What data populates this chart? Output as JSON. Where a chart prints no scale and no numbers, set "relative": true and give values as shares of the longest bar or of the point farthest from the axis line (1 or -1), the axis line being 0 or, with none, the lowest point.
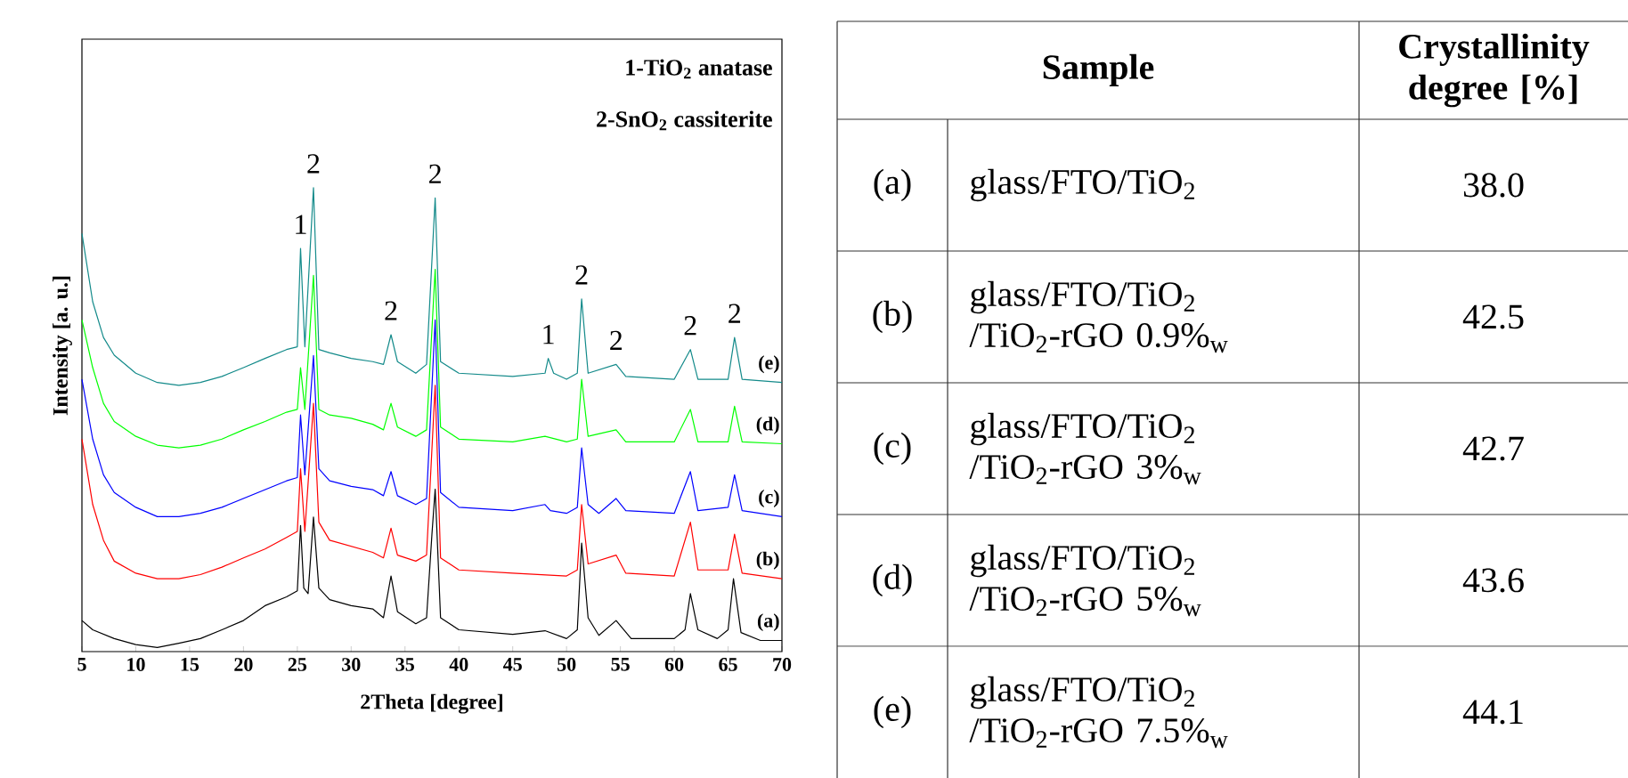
{
  "chart_data": [
    {
      "type": "line",
      "relative": true,
      "xlabel": "2Theta [degree]",
      "ylabel": "Intensity [a. u.]",
      "xlim": [
        5,
        70
      ],
      "xticks": [
        5,
        10,
        15,
        20,
        25,
        30,
        35,
        40,
        45,
        50,
        55,
        60,
        65,
        70
      ],
      "marker": "none",
      "line_style": "solid",
      "annotations": [
        "1-TiO$_{2}$ anatase",
        "2-SnO$_{2}$ cassiterite",
        {
          "text": "1",
          "x": 25.3,
          "y": 0.869
        },
        {
          "text": "2",
          "x": 26.5,
          "y": 1.0
        },
        {
          "text": "2",
          "x": 33.7,
          "y": 0.683
        },
        {
          "text": "2",
          "x": 37.8,
          "y": 0.978
        },
        {
          "text": "1",
          "x": 48.3,
          "y": 0.632
        },
        {
          "text": "2",
          "x": 51.4,
          "y": 0.76
        },
        {
          "text": "2",
          "x": 54.6,
          "y": 0.619
        },
        {
          "text": "2",
          "x": 61.5,
          "y": 0.651
        },
        {
          "text": "2",
          "x": 65.6,
          "y": 0.677
        }
      ],
      "series": [
        {
          "name": "(a)",
          "color": "#000000",
          "x": [
            5,
            6,
            8,
            10,
            12,
            14,
            16,
            18,
            20,
            22,
            24,
            25,
            25.3,
            25.6,
            26,
            26.5,
            27,
            28,
            30,
            32,
            33,
            33.7,
            34.3,
            36,
            37,
            37.5,
            37.8,
            38.3,
            40,
            45,
            48,
            50,
            51,
            51.4,
            52,
            53,
            54.6,
            56,
            60,
            61,
            61.5,
            62.2,
            64,
            65,
            65.5,
            66.2,
            68,
            70
          ],
          "values": [
            0.067,
            0.047,
            0.028,
            0.015,
            0.009,
            0.018,
            0.028,
            0.047,
            0.067,
            0.099,
            0.118,
            0.131,
            0.272,
            0.137,
            0.125,
            0.29,
            0.137,
            0.112,
            0.099,
            0.092,
            0.073,
            0.163,
            0.086,
            0.06,
            0.073,
            0.253,
            0.35,
            0.073,
            0.047,
            0.037,
            0.045,
            0.028,
            0.047,
            0.234,
            0.073,
            0.035,
            0.067,
            0.028,
            0.028,
            0.047,
            0.125,
            0.047,
            0.028,
            0.047,
            0.157,
            0.041,
            0.024,
            0.024
          ]
        },
        {
          "name": "(b)",
          "color": "#ff0000",
          "x": [
            5,
            6,
            7,
            8,
            10,
            12,
            14,
            16,
            18,
            20,
            22,
            24,
            25,
            25.3,
            25.7,
            26.5,
            27,
            28,
            30,
            32,
            33,
            33.7,
            34.3,
            36,
            37,
            37.8,
            38.3,
            40,
            45,
            50,
            51,
            51.4,
            52,
            54.6,
            55.5,
            60,
            61.5,
            62.2,
            65,
            65.6,
            66.3,
            70
          ],
          "values": [
            0.458,
            0.317,
            0.24,
            0.195,
            0.169,
            0.157,
            0.157,
            0.166,
            0.182,
            0.202,
            0.221,
            0.246,
            0.259,
            0.394,
            0.259,
            0.535,
            0.279,
            0.24,
            0.227,
            0.214,
            0.202,
            0.266,
            0.208,
            0.195,
            0.208,
            0.574,
            0.202,
            0.176,
            0.169,
            0.163,
            0.176,
            0.317,
            0.189,
            0.208,
            0.169,
            0.163,
            0.279,
            0.176,
            0.176,
            0.253,
            0.169,
            0.157
          ]
        },
        {
          "name": "(c)",
          "color": "#0000ff",
          "x": [
            5,
            6,
            7,
            8,
            10,
            12,
            14,
            16,
            18,
            20,
            22,
            24,
            25,
            25.3,
            25.7,
            26.5,
            27,
            28,
            30,
            32,
            33,
            33.7,
            34.3,
            36,
            37,
            37.8,
            38.3,
            40,
            45,
            48,
            48.5,
            50,
            51,
            51.4,
            52,
            53,
            54.6,
            55.5,
            60,
            61.5,
            62.2,
            65,
            65.6,
            66.3,
            70
          ],
          "values": [
            0.587,
            0.458,
            0.381,
            0.343,
            0.311,
            0.291,
            0.291,
            0.298,
            0.311,
            0.33,
            0.349,
            0.368,
            0.375,
            0.51,
            0.381,
            0.638,
            0.394,
            0.368,
            0.356,
            0.349,
            0.336,
            0.388,
            0.336,
            0.317,
            0.33,
            0.715,
            0.343,
            0.311,
            0.304,
            0.317,
            0.304,
            0.298,
            0.311,
            0.439,
            0.317,
            0.298,
            0.33,
            0.304,
            0.298,
            0.388,
            0.304,
            0.311,
            0.381,
            0.304,
            0.291
          ]
        },
        {
          "name": "(d)",
          "color": "#00ff00",
          "x": [
            5,
            6,
            7,
            8,
            10,
            12,
            14,
            16,
            18,
            20,
            22,
            24,
            25,
            25.3,
            25.7,
            26.5,
            27,
            28,
            30,
            32,
            33,
            33.7,
            34.3,
            36,
            37,
            37.8,
            38.3,
            40,
            45,
            48,
            50,
            51,
            51.4,
            52,
            54.6,
            55.5,
            60,
            61.5,
            62.2,
            65,
            65.6,
            66.3,
            70
          ],
          "values": [
            0.715,
            0.612,
            0.535,
            0.496,
            0.464,
            0.445,
            0.439,
            0.445,
            0.458,
            0.478,
            0.496,
            0.516,
            0.522,
            0.612,
            0.522,
            0.811,
            0.522,
            0.51,
            0.503,
            0.49,
            0.478,
            0.535,
            0.484,
            0.464,
            0.478,
            0.824,
            0.484,
            0.458,
            0.452,
            0.464,
            0.452,
            0.458,
            0.587,
            0.464,
            0.478,
            0.452,
            0.452,
            0.522,
            0.452,
            0.452,
            0.529,
            0.452,
            0.448
          ]
        },
        {
          "name": "(e)",
          "color": "#138a8a",
          "x": [
            5,
            6,
            7,
            8,
            10,
            12,
            14,
            16,
            18,
            20,
            22,
            24,
            25,
            25.3,
            25.7,
            26.5,
            27,
            28,
            30,
            32,
            33,
            33.7,
            34.3,
            36,
            37,
            37.8,
            38.3,
            40,
            45,
            48,
            48.3,
            48.8,
            50,
            51,
            51.4,
            52,
            54.6,
            55.5,
            60,
            61.5,
            62.2,
            65,
            65.6,
            66.3,
            70
          ],
          "values": [
            0.901,
            0.754,
            0.677,
            0.639,
            0.6,
            0.58,
            0.574,
            0.58,
            0.593,
            0.612,
            0.632,
            0.651,
            0.657,
            0.869,
            0.657,
            1.0,
            0.651,
            0.644,
            0.632,
            0.625,
            0.619,
            0.683,
            0.625,
            0.6,
            0.619,
            0.978,
            0.625,
            0.6,
            0.593,
            0.6,
            0.632,
            0.6,
            0.587,
            0.6,
            0.76,
            0.6,
            0.619,
            0.593,
            0.587,
            0.651,
            0.587,
            0.587,
            0.677,
            0.587,
            0.58
          ]
        }
      ]
    },
    {
      "type": "other",
      "xlabel": "Sample",
      "ylabel": "Crystallinity degree [%]",
      "categories": [
        "(a)",
        "(b)",
        "(c)",
        "(d)",
        "(e)"
      ],
      "annotations": [
        "glass/FTO/TiO$_{2}$",
        "glass/FTO/TiO$_{2}$ /TiO$_{2}$-rGO 0.9%$_{w}$",
        "glass/FTO/TiO$_{2}$ /TiO$_{2}$-rGO 3%$_{w}$",
        "glass/FTO/TiO$_{2}$ /TiO$_{2}$-rGO 5%$_{w}$",
        "glass/FTO/TiO$_{2}$ /TiO$_{2}$-rGO 7.5%$_{w}$",
        "38.0",
        "42.5",
        "42.7",
        "43.6",
        "44.1"
      ]
    }
  ]
}
